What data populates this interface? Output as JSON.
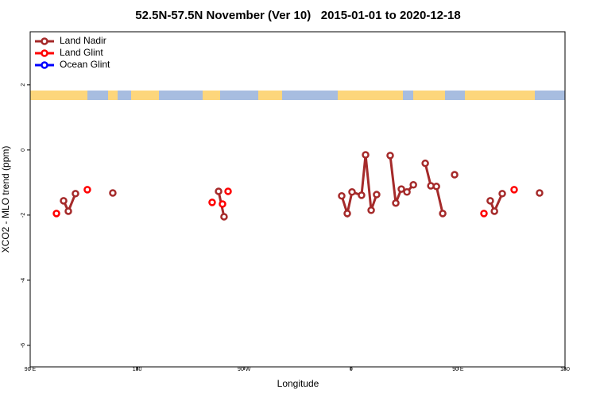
{
  "chart_data": {
    "type": "line",
    "title": "52.5N-57.5N November (Ver 10)   2015-01-01 to 2020-12-18",
    "x_label": "Longitude",
    "y_label": "XCO2 - MLO trend (ppm)",
    "xlim": [
      90,
      540
    ],
    "xticks": [
      {
        "value": 90,
        "label": "90 E"
      },
      {
        "value": 180,
        "label": "180"
      },
      {
        "value": 270,
        "label": "90 W"
      },
      {
        "value": 360,
        "label": "0"
      },
      {
        "value": 450,
        "label": "90 E"
      },
      {
        "value": 540,
        "label": "180"
      }
    ],
    "ylim": [
      -6.66,
      3.63
    ],
    "yticks": [
      2,
      0,
      -2,
      -4,
      -6
    ],
    "legend": "topleft",
    "series": [
      {
        "name": "Land Nadir",
        "color": "#a52a2a",
        "lines": true,
        "x": [
          118.1,
          122.1,
          128.1,
          null,
          159.5,
          null,
          248.5,
          253.1,
          null,
          352.1,
          356.8,
          360.8,
          368.8,
          372.2,
          376.9,
          381.5,
          null,
          392.9,
          397.6,
          402.3,
          407.0,
          412.4,
          null,
          422.4,
          427.1,
          431.8,
          437.1,
          null,
          447.1,
          null,
          477.1,
          480.6,
          487.2,
          null,
          518.6
        ],
        "values": [
          -1.56,
          -1.88,
          -1.34,
          null,
          -1.32,
          null,
          -1.27,
          -2.05,
          null,
          -1.41,
          -1.95,
          -1.29,
          -1.39,
          -0.15,
          -1.85,
          -1.37,
          null,
          -0.17,
          -1.63,
          -1.2,
          -1.29,
          -1.07,
          null,
          -0.41,
          -1.1,
          -1.12,
          -1.95,
          null,
          -0.76,
          null,
          -1.56,
          -1.88,
          -1.34,
          null,
          -1.32
        ]
      },
      {
        "name": "Land Glint",
        "color": "#ff0000",
        "lines": false,
        "x": [
          112.1,
          138.1,
          243.1,
          251.8,
          256.5,
          471.8,
          497.2
        ],
        "values": [
          -1.95,
          -1.22,
          -1.61,
          -1.66,
          -1.27,
          -1.95,
          -1.22
        ]
      },
      {
        "name": "Ocean Glint",
        "color": "#0000ff",
        "lines": false,
        "x": [],
        "values": []
      }
    ]
  }
}
